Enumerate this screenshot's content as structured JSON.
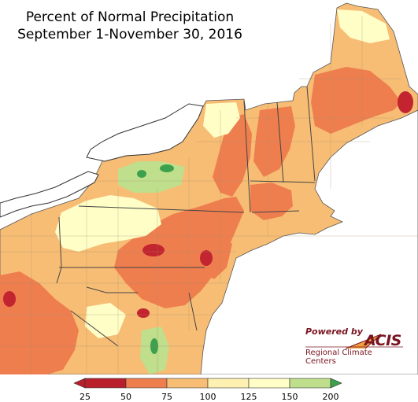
{
  "title": {
    "line1": "Percent of Normal Precipitation",
    "line2": "September 1-November 30, 2016"
  },
  "credit": {
    "powered_by": "Powered by",
    "acis": "ACIS",
    "centers": "Regional Climate Centers"
  },
  "legend": {
    "ticks": [
      "25",
      "50",
      "75",
      "100",
      "125",
      "150",
      "200"
    ],
    "bins": [
      {
        "color": "#b81f2b"
      },
      {
        "color": "#ef7e4f"
      },
      {
        "color": "#f7bd74"
      },
      {
        "color": "#fdf0b1"
      },
      {
        "color": "#fffec7"
      },
      {
        "color": "#bfdf8c"
      },
      {
        "color": "#3ca04d"
      }
    ],
    "under_color": "#b81f2b",
    "over_color": "#3ca04d"
  },
  "colors": {
    "water": "#ffffff",
    "deficit_severe": "#c32530",
    "deficit": "#ef7e4f",
    "below_normal": "#f7bd74",
    "near_normal": "#fdf0b1",
    "above_normal": "#fffec7",
    "wet": "#bfdf8c",
    "very_wet": "#3ca04d"
  }
}
